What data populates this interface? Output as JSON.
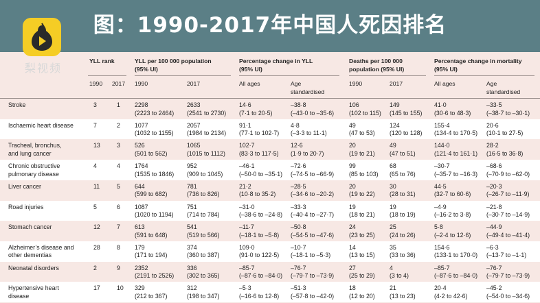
{
  "title": "图：1990-2017年中国人死因排名",
  "logo_text": "梨视频",
  "colors": {
    "banner": "#5b7f86",
    "logo": "#f5cd25",
    "row_pink": "#f7e8e4",
    "row_white": "#ffffff"
  },
  "headers": {
    "yll_rank": "YLL rank",
    "yll_per": "YLL per 100 000 population",
    "yll_per_ui": "(95% UI)",
    "pct_yll": "Percentage change in YLL",
    "pct_yll_ui": "(95% UI)",
    "deaths": "Deaths per 100 000",
    "deaths_2": "population (95% UI)",
    "pct_mort": "Percentage change in mortality",
    "pct_mort_ui": "(95% UI)",
    "y1990": "1990",
    "y2017": "2017",
    "all_ages": "All ages",
    "age_std": "Age",
    "age_std2": "standardised"
  },
  "rows": [
    {
      "cause": [
        "Stroke"
      ],
      "r1990": "3",
      "r2017": "1",
      "yll1990": "2298",
      "yll1990ui": "(2223 to 2464)",
      "yll2017": "2633",
      "yll2017ui": "(2541 to 2730)",
      "pyll_all": "14·6",
      "pyll_all_ui": "(7·1 to 20·5)",
      "pyll_std": "–38·8",
      "pyll_std_ui": "(–43·0 to –35·6)",
      "d1990": "106",
      "d1990ui": "(102 to 115)",
      "d2017": "149",
      "d2017ui": "(145 to 155)",
      "pm_all": "41·0",
      "pm_all_ui": "(30·6 to 48·3)",
      "pm_std": "–33·5",
      "pm_std_ui": "(–38·7 to –30·1)"
    },
    {
      "cause": [
        "Ischaemic heart disease"
      ],
      "r1990": "7",
      "r2017": "2",
      "yll1990": "1077",
      "yll1990ui": "(1032 to 1155)",
      "yll2017": "2057",
      "yll2017ui": "(1984 to 2134)",
      "pyll_all": "91·1",
      "pyll_all_ui": "(77·1 to 102·7)",
      "pyll_std": "4·8",
      "pyll_std_ui": "(–3·3 to 11·1)",
      "d1990": "49",
      "d1990ui": "(47 to 53)",
      "d2017": "124",
      "d2017ui": "(120 to 128)",
      "pm_all": "155·4",
      "pm_all_ui": "(134·4 to 170·5)",
      "pm_std": "20·6",
      "pm_std_ui": "(10·1 to 27·5)"
    },
    {
      "cause": [
        "Tracheal, bronchus,",
        "and lung cancer"
      ],
      "r1990": "13",
      "r2017": "3",
      "yll1990": "526",
      "yll1990ui": "(501 to 562)",
      "yll2017": "1065",
      "yll2017ui": "(1015 to 1112)",
      "pyll_all": "102·7",
      "pyll_all_ui": "(83·3 to 117·5)",
      "pyll_std": "12·6",
      "pyll_std_ui": "(1·9 to 20·7)",
      "d1990": "20",
      "d1990ui": "(19 to 21)",
      "d2017": "49",
      "d2017ui": "(47 to 51)",
      "pm_all": "144·0",
      "pm_all_ui": "(121·4 to 161·1)",
      "pm_std": "28·2",
      "pm_std_ui": "(16·5 to 36·8)"
    },
    {
      "cause": [
        "Chronic obstructive",
        "pulmonary disease"
      ],
      "r1990": "4",
      "r2017": "4",
      "yll1990": "1764",
      "yll1990ui": "(1535 to 1846)",
      "yll2017": "952",
      "yll2017ui": "(909 to 1045)",
      "pyll_all": "–46·1",
      "pyll_all_ui": "(–50·0 to –35·1)",
      "pyll_std": "–72·6",
      "pyll_std_ui": "(–74·5 to –66·9)",
      "d1990": "99",
      "d1990ui": "(85 to 103)",
      "d2017": "68",
      "d2017ui": "(65 to 76)",
      "pm_all": "–30·7",
      "pm_all_ui": "(–35·7 to –16·3)",
      "pm_std": "–68·6",
      "pm_std_ui": "(–70·9 to –62·0)"
    },
    {
      "cause": [
        "Liver cancer"
      ],
      "r1990": "11",
      "r2017": "5",
      "yll1990": "644",
      "yll1990ui": "(599 to 682)",
      "yll2017": "781",
      "yll2017ui": "(736 to 826)",
      "pyll_all": "21·2",
      "pyll_all_ui": "(10·8 to 35·2)",
      "pyll_std": "–28·5",
      "pyll_std_ui": "(–34·6 to –20·2)",
      "d1990": "20",
      "d1990ui": "(19 to 22)",
      "d2017": "30",
      "d2017ui": "(28 to 31)",
      "pm_all": "44·5",
      "pm_all_ui": "(32·7 to 60·6)",
      "pm_std": "–20·3",
      "pm_std_ui": "(–26·7 to –11·9)"
    },
    {
      "cause": [
        "Road injuries"
      ],
      "r1990": "5",
      "r2017": "6",
      "yll1990": "1087",
      "yll1990ui": "(1020 to 1194)",
      "yll2017": "751",
      "yll2017ui": "(714 to 784)",
      "pyll_all": "–31·0",
      "pyll_all_ui": "(–38·6 to –24·8)",
      "pyll_std": "–33·3",
      "pyll_std_ui": "(–40·4 to –27·7)",
      "d1990": "19",
      "d1990ui": "(18 to 21)",
      "d2017": "19",
      "d2017ui": "(18 to 19)",
      "pm_all": "–4·9",
      "pm_all_ui": "(–16·2 to 3·8)",
      "pm_std": "–21·8",
      "pm_std_ui": "(–30·7 to –14·9)"
    },
    {
      "cause": [
        "Stomach cancer"
      ],
      "r1990": "12",
      "r2017": "7",
      "yll1990": "613",
      "yll1990ui": "(591 to 648)",
      "yll2017": "541",
      "yll2017ui": "(519 to 566)",
      "pyll_all": "–11·7",
      "pyll_all_ui": "(–18·1 to –5·8)",
      "pyll_std": "–50·8",
      "pyll_std_ui": "(–54·5 to –47·6)",
      "d1990": "24",
      "d1990ui": "(23 to 25)",
      "d2017": "25",
      "d2017ui": "(24 to 26)",
      "pm_all": "5·8",
      "pm_all_ui": "(–2·4 to 12·6)",
      "pm_std": "–44·9",
      "pm_std_ui": "(–49·4 to –41·4)"
    },
    {
      "cause": [
        "Alzheimer’s disease and",
        "other dementias"
      ],
      "r1990": "28",
      "r2017": "8",
      "yll1990": "179",
      "yll1990ui": "(171 to 194)",
      "yll2017": "374",
      "yll2017ui": "(360 to 387)",
      "pyll_all": "109·0",
      "pyll_all_ui": "(91·0 to 122·5)",
      "pyll_std": "–10·7",
      "pyll_std_ui": "(–18·1 to –5·3)",
      "d1990": "14",
      "d1990ui": "(13 to 15)",
      "d2017": "35",
      "d2017ui": "(33 to 36)",
      "pm_all": "154·6",
      "pm_all_ui": "(133·1 to 170·0)",
      "pm_std": "–6·3",
      "pm_std_ui": "(–13·7 to –1·1)"
    },
    {
      "cause": [
        "Neonatal disorders"
      ],
      "r1990": "2",
      "r2017": "9",
      "yll1990": "2352",
      "yll1990ui": "(2191 to 2526)",
      "yll2017": "336",
      "yll2017ui": "(302 to 365)",
      "pyll_all": "–85·7",
      "pyll_all_ui": "(–87·6 to –84·0)",
      "pyll_std": "–76·7",
      "pyll_std_ui": "(–79·7 to –73·9)",
      "d1990": "27",
      "d1990ui": "(25 to 29)",
      "d2017": "4",
      "d2017ui": "(3 to 4)",
      "pm_all": "–85·7",
      "pm_all_ui": "(–87·6 to –84·0)",
      "pm_std": "–76·7",
      "pm_std_ui": "(–79·7 to –73·9)"
    },
    {
      "cause": [
        "Hypertensive heart",
        "disease"
      ],
      "r1990": "17",
      "r2017": "10",
      "yll1990": "329",
      "yll1990ui": "(212 to 367)",
      "yll2017": "312",
      "yll2017ui": "(198 to 347)",
      "pyll_all": "–5·3",
      "pyll_all_ui": "(–16·6 to 12·8)",
      "pyll_std": "–51·3",
      "pyll_std_ui": "(–57·8 to –42·0)",
      "d1990": "18",
      "d1990ui": "(12 to 20)",
      "d2017": "21",
      "d2017ui": "(13 to 23)",
      "pm_all": "20·4",
      "pm_all_ui": "(4·2 to 42·6)",
      "pm_std": "–45·2",
      "pm_std_ui": "(–54·0 to –34·6)"
    }
  ]
}
